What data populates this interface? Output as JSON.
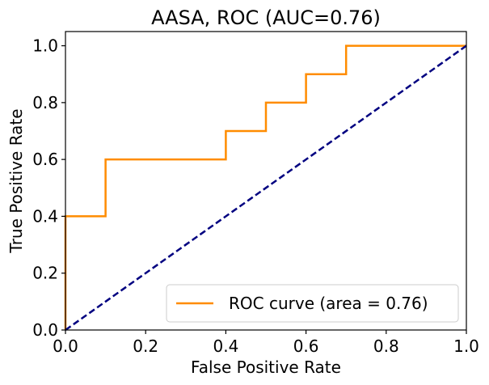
{
  "chart_data": {
    "type": "line",
    "title": "AASA, ROC (AUC=0.76)",
    "xlabel": "False Positive Rate",
    "ylabel": "True Positive Rate",
    "xlim": [
      0.0,
      1.0
    ],
    "ylim": [
      0.0,
      1.05
    ],
    "xticks": [
      "0.0",
      "0.2",
      "0.4",
      "0.6",
      "0.8",
      "1.0"
    ],
    "yticks": [
      "0.0",
      "0.2",
      "0.4",
      "0.6",
      "0.8",
      "1.0"
    ],
    "grid": false,
    "legend_position": "lower-right",
    "series": [
      {
        "name": "ROC curve (area = 0.76)",
        "color": "#ff8c00",
        "style": "solid",
        "x": [
          0.0,
          0.0,
          0.0,
          0.1,
          0.1,
          0.4,
          0.4,
          0.5,
          0.5,
          0.6,
          0.6,
          0.7,
          0.7,
          1.0
        ],
        "y": [
          0.0,
          0.1,
          0.4,
          0.4,
          0.6,
          0.6,
          0.7,
          0.7,
          0.8,
          0.8,
          0.9,
          0.9,
          1.0,
          1.0
        ]
      },
      {
        "color": "#000080",
        "style": "dashed",
        "x": [
          0.0,
          1.0
        ],
        "y": [
          0.0,
          1.0
        ]
      }
    ]
  }
}
